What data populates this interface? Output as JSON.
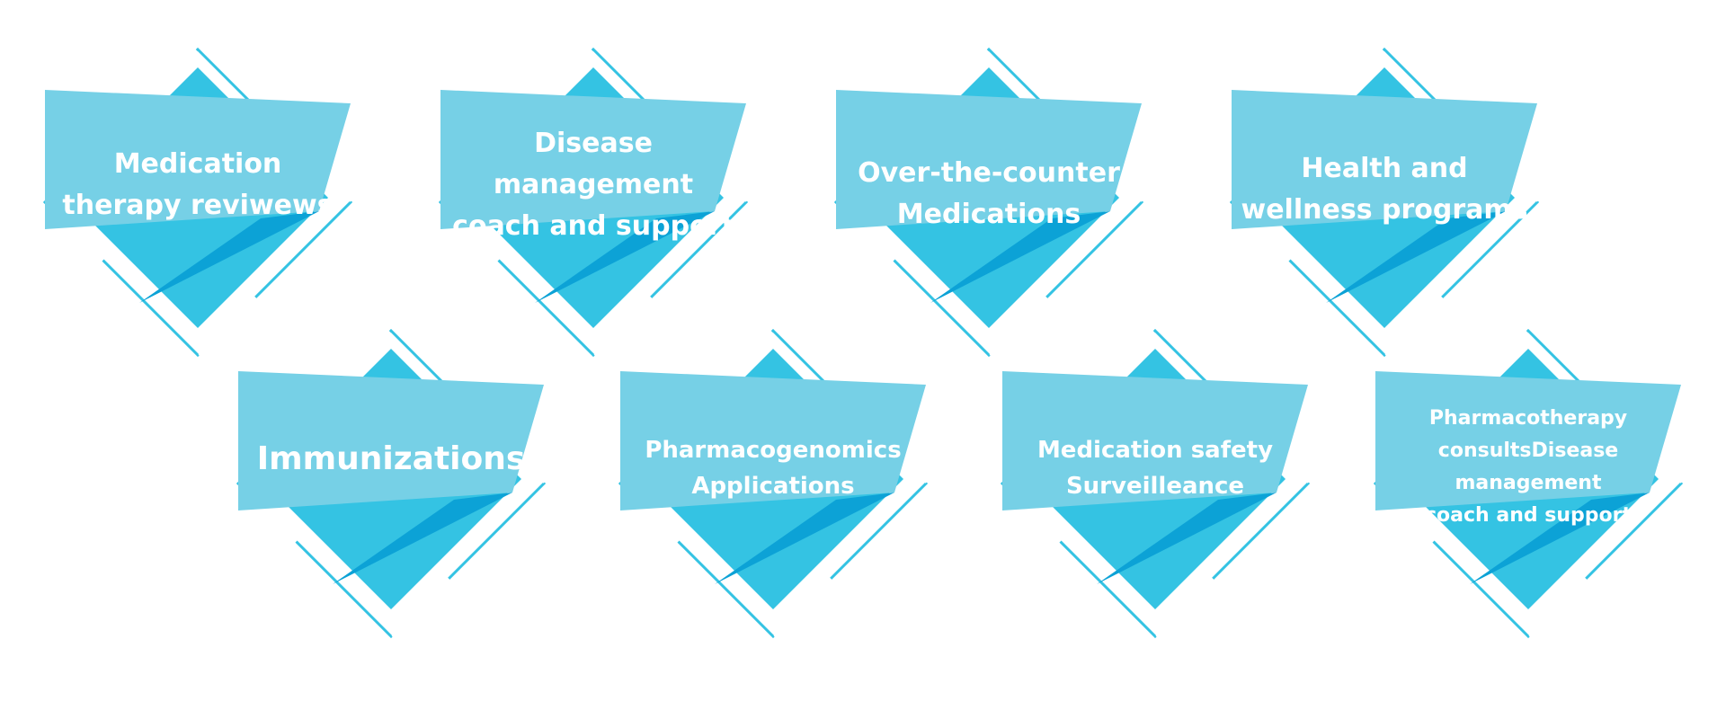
{
  "colors": {
    "diamond": "#34C3E3",
    "outline": "#34C3E3",
    "banner": "#76D0E6",
    "fold_dark": "#0CA2D6",
    "text": "#FFFFFF"
  },
  "badges": [
    {
      "id": "medication-therapy-reviews",
      "lines": [
        "Medication",
        "therapy reviwews"
      ],
      "icon": "diamond-banner-icon"
    },
    {
      "id": "disease-management",
      "lines": [
        "Disease",
        "management",
        "coach and support"
      ],
      "icon": "diamond-banner-icon"
    },
    {
      "id": "over-the-counter",
      "lines": [
        "Over-the-counter",
        "Medications"
      ],
      "icon": "diamond-banner-icon"
    },
    {
      "id": "health-wellness",
      "lines": [
        "Health and",
        "wellness programs"
      ],
      "icon": "diamond-banner-icon"
    },
    {
      "id": "immunizations",
      "lines": [
        "Immunizations"
      ],
      "icon": "diamond-banner-icon"
    },
    {
      "id": "pharmacogenomics",
      "lines": [
        "Pharmacogenomics",
        "Applications"
      ],
      "icon": "diamond-banner-icon"
    },
    {
      "id": "medication-safety",
      "lines": [
        "Medication safety",
        "Surveilleance"
      ],
      "icon": "diamond-banner-icon"
    },
    {
      "id": "pharmacotherapy-consults",
      "lines": [
        "Pharmacotherapy",
        "consultsDisease",
        "management",
        "coach and support"
      ],
      "icon": "diamond-banner-icon"
    }
  ]
}
